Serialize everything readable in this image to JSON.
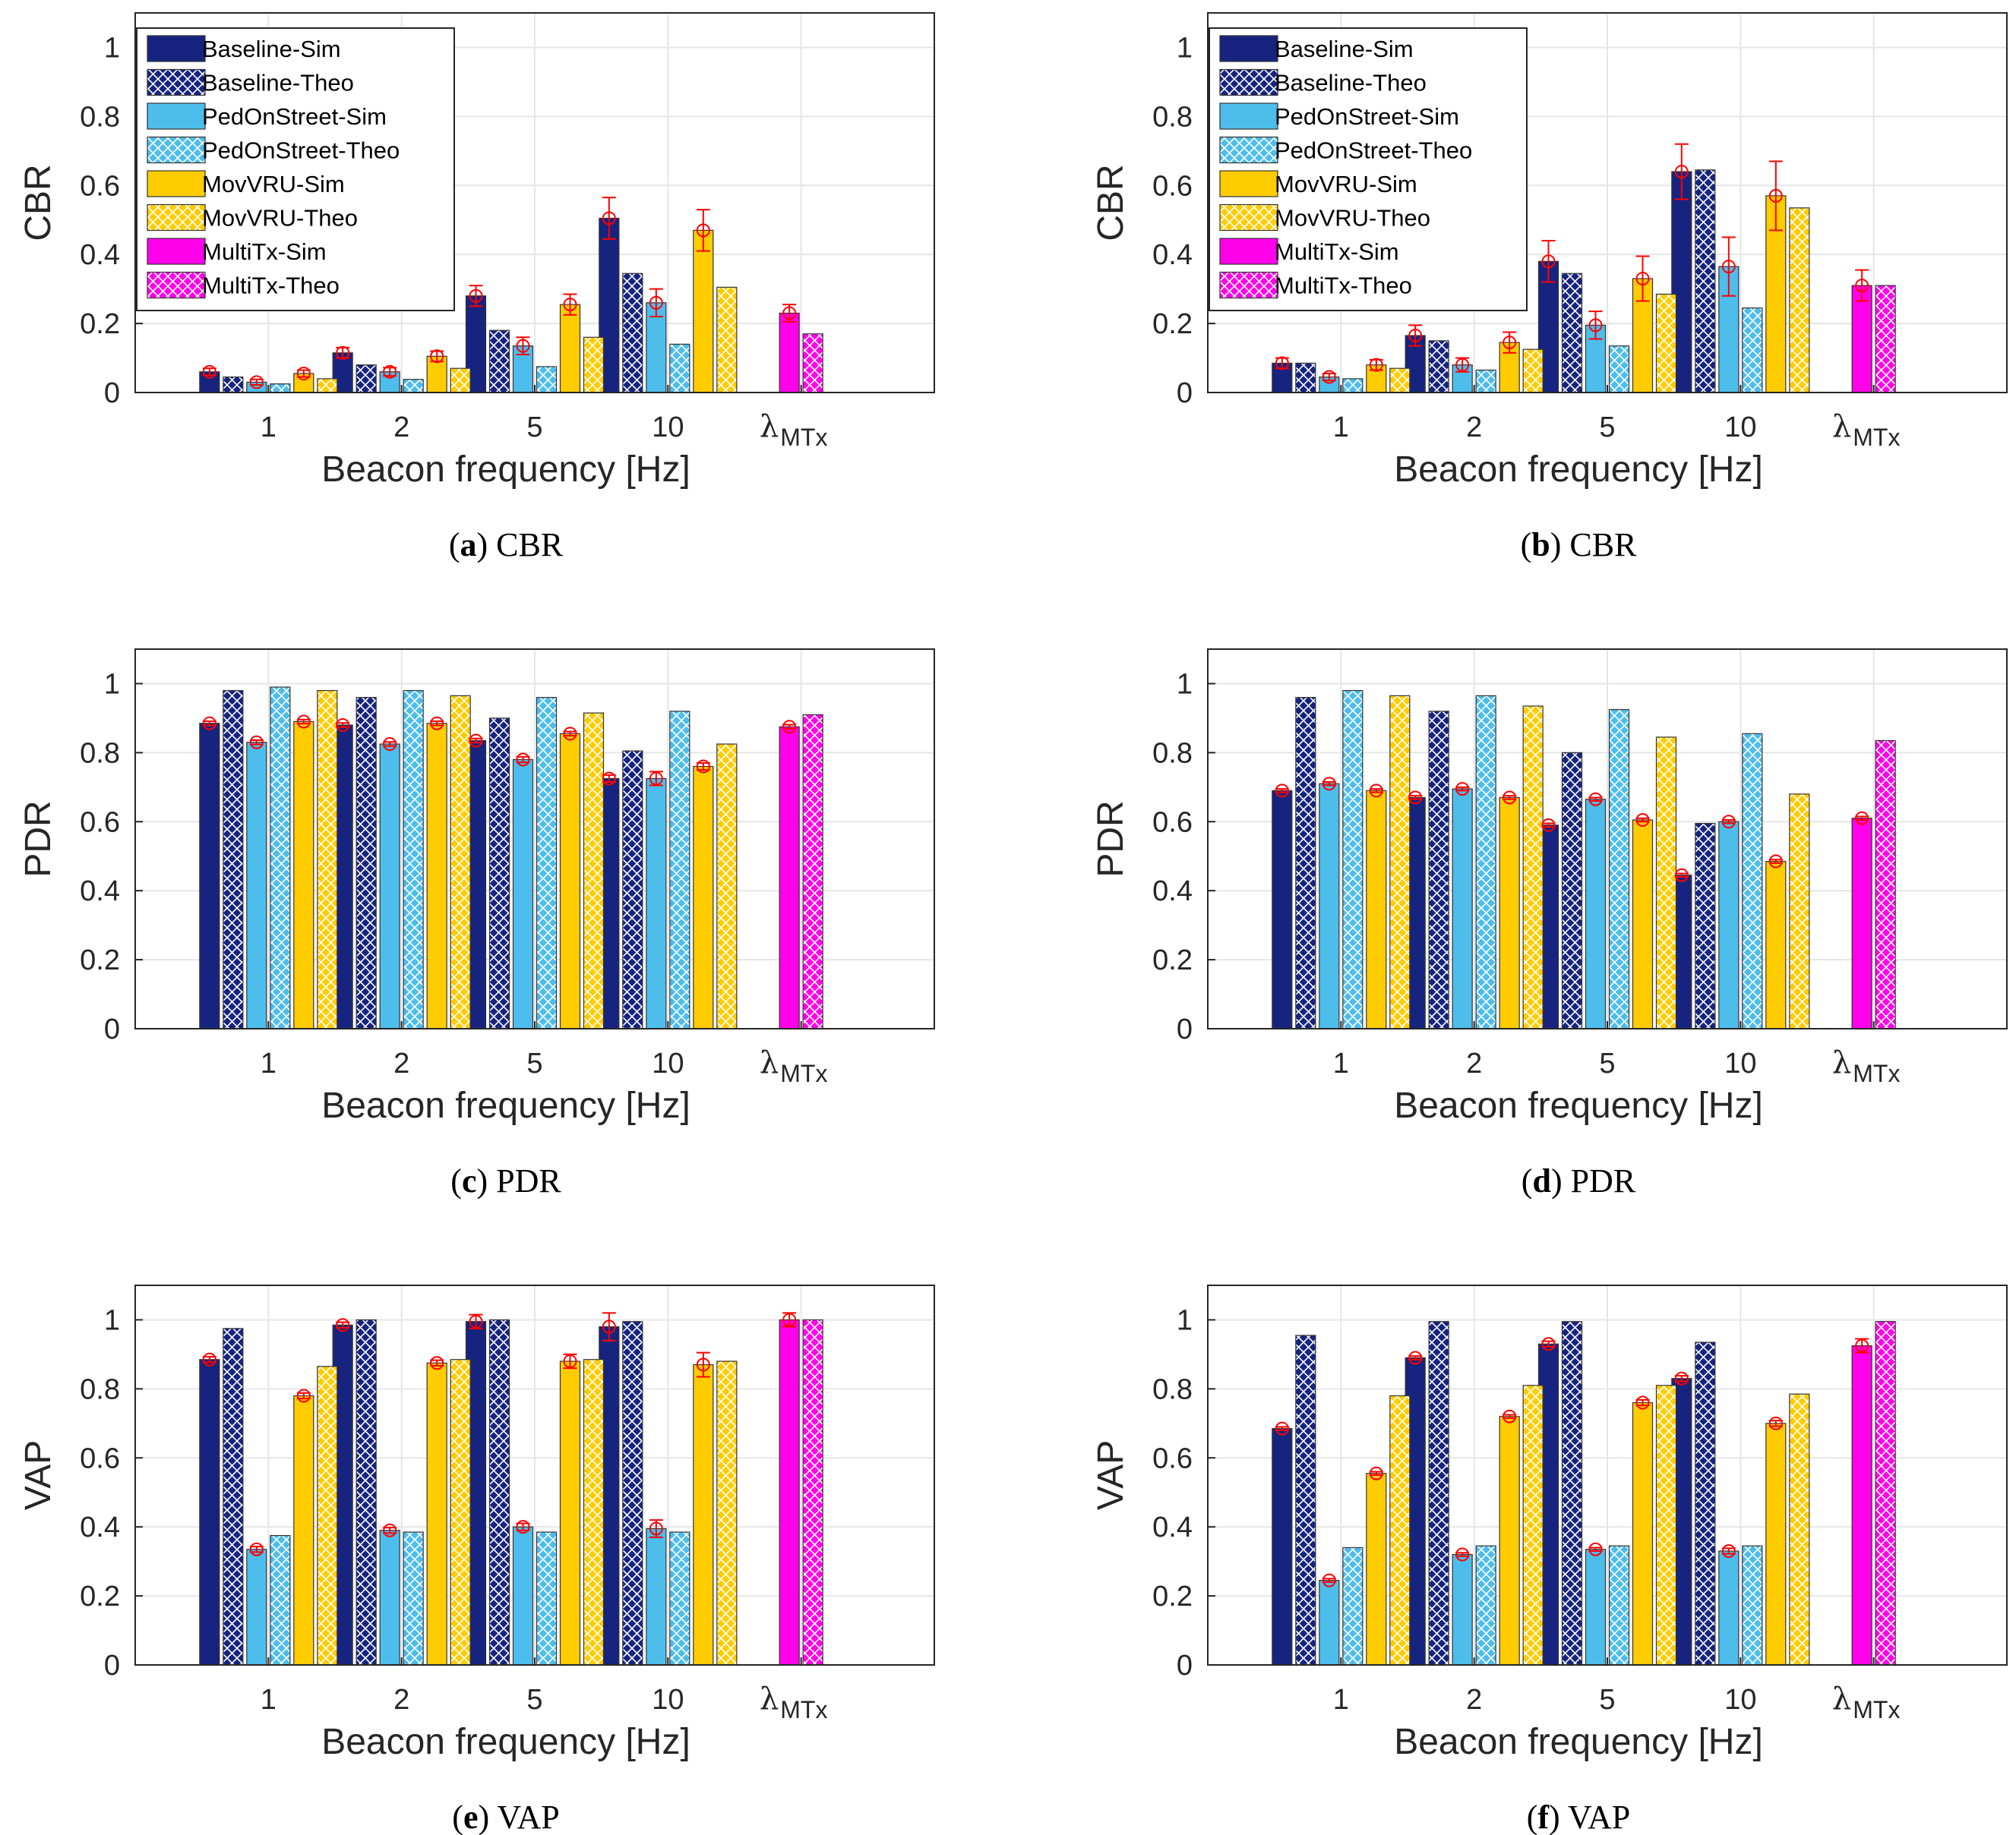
{
  "colors": {
    "Baseline": "#16247F",
    "PedOnStreet": "#4DBDEC",
    "MovVRU": "#FFCC00",
    "MultiTx": "#FF00EA",
    "error": "#FF0000",
    "grid": "#E6E6E6"
  },
  "chart_data": [
    {
      "id": "a",
      "type": "bar",
      "caption": {
        "letter": "a",
        "text": "CBR"
      },
      "ylabel": "CBR",
      "xlabel": "Beacon frequency [Hz]",
      "ylim": [
        0,
        1.1
      ],
      "yticks": [
        "0",
        "0.2",
        "0.4",
        "0.6",
        "0.8",
        "1"
      ],
      "categories": [
        "1",
        "2",
        "5",
        "10",
        "λMTx"
      ],
      "lambda_label": {
        "symbol": "λ",
        "sub": "MTx"
      },
      "legend": [
        "Baseline-Sim",
        "Baseline-Theo",
        "PedOnStreet-Sim",
        "PedOnStreet-Theo",
        "MovVRU-Sim",
        "MovVRU-Theo",
        "MultiTx-Sim",
        "MultiTx-Theo"
      ],
      "series": [
        {
          "name": "Baseline-Sim",
          "values": [
            0.06,
            0.115,
            0.28,
            0.505,
            null
          ],
          "err": [
            0.01,
            0.015,
            0.03,
            0.06,
            null
          ]
        },
        {
          "name": "Baseline-Theo",
          "values": [
            0.045,
            0.08,
            0.18,
            0.345,
            null
          ]
        },
        {
          "name": "PedOnStreet-Sim",
          "values": [
            0.03,
            0.06,
            0.135,
            0.26,
            null
          ],
          "err": [
            0.008,
            0.012,
            0.025,
            0.04,
            null
          ]
        },
        {
          "name": "PedOnStreet-Theo",
          "values": [
            0.025,
            0.038,
            0.075,
            0.14,
            null
          ]
        },
        {
          "name": "MovVRU-Sim",
          "values": [
            0.055,
            0.105,
            0.255,
            0.47,
            null
          ],
          "err": [
            0.01,
            0.015,
            0.03,
            0.06,
            null
          ]
        },
        {
          "name": "MovVRU-Theo",
          "values": [
            0.04,
            0.07,
            0.16,
            0.305,
            null
          ]
        },
        {
          "name": "MultiTx-Sim",
          "values": [
            null,
            null,
            null,
            null,
            0.23
          ],
          "err": [
            null,
            null,
            null,
            null,
            0.025
          ]
        },
        {
          "name": "MultiTx-Theo",
          "values": [
            null,
            null,
            null,
            null,
            0.17
          ]
        }
      ]
    },
    {
      "id": "b",
      "type": "bar",
      "caption": {
        "letter": "b",
        "text": "CBR"
      },
      "ylabel": "CBR",
      "xlabel": "Beacon frequency [Hz]",
      "ylim": [
        0,
        1.1
      ],
      "yticks": [
        "0",
        "0.2",
        "0.4",
        "0.6",
        "0.8",
        "1"
      ],
      "categories": [
        "1",
        "2",
        "5",
        "10",
        "λMTx"
      ],
      "lambda_label": {
        "symbol": "λ",
        "sub": "MTx"
      },
      "legend": [
        "Baseline-Sim",
        "Baseline-Theo",
        "PedOnStreet-Sim",
        "PedOnStreet-Theo",
        "MovVRU-Sim",
        "MovVRU-Theo",
        "MultiTx-Sim",
        "MultiTx-Theo"
      ],
      "series": [
        {
          "name": "Baseline-Sim",
          "values": [
            0.085,
            0.165,
            0.38,
            0.64,
            null
          ],
          "err": [
            0.015,
            0.03,
            0.06,
            0.08,
            null
          ]
        },
        {
          "name": "Baseline-Theo",
          "values": [
            0.085,
            0.15,
            0.345,
            0.645,
            null
          ]
        },
        {
          "name": "PedOnStreet-Sim",
          "values": [
            0.045,
            0.08,
            0.195,
            0.365,
            null
          ],
          "err": [
            0.01,
            0.02,
            0.04,
            0.085,
            null
          ]
        },
        {
          "name": "PedOnStreet-Theo",
          "values": [
            0.04,
            0.065,
            0.135,
            0.245,
            null
          ]
        },
        {
          "name": "MovVRU-Sim",
          "values": [
            0.08,
            0.145,
            0.33,
            0.57,
            null
          ],
          "err": [
            0.015,
            0.03,
            0.065,
            0.1,
            null
          ]
        },
        {
          "name": "MovVRU-Theo",
          "values": [
            0.07,
            0.125,
            0.285,
            0.535,
            null
          ]
        },
        {
          "name": "MultiTx-Sim",
          "values": [
            null,
            null,
            null,
            null,
            0.31
          ],
          "err": [
            null,
            null,
            null,
            null,
            0.045
          ]
        },
        {
          "name": "MultiTx-Theo",
          "values": [
            null,
            null,
            null,
            null,
            0.31
          ]
        }
      ]
    },
    {
      "id": "c",
      "type": "bar",
      "caption": {
        "letter": "c",
        "text": "PDR"
      },
      "ylabel": "PDR",
      "xlabel": "Beacon frequency [Hz]",
      "ylim": [
        0,
        1.1
      ],
      "yticks": [
        "0",
        "0.2",
        "0.4",
        "0.6",
        "0.8",
        "1"
      ],
      "categories": [
        "1",
        "2",
        "5",
        "10",
        "λMTx"
      ],
      "lambda_label": {
        "symbol": "λ",
        "sub": "MTx"
      },
      "series": [
        {
          "name": "Baseline-Sim",
          "values": [
            0.885,
            0.88,
            0.835,
            0.725,
            null
          ],
          "err": [
            0.006,
            0.006,
            0.006,
            0.01,
            null
          ]
        },
        {
          "name": "Baseline-Theo",
          "values": [
            0.98,
            0.96,
            0.9,
            0.805,
            null
          ]
        },
        {
          "name": "PedOnStreet-Sim",
          "values": [
            0.83,
            0.825,
            0.78,
            0.725,
            null
          ],
          "err": [
            0.006,
            0.006,
            0.008,
            0.02,
            null
          ]
        },
        {
          "name": "PedOnStreet-Theo",
          "values": [
            0.99,
            0.98,
            0.96,
            0.92,
            null
          ]
        },
        {
          "name": "MovVRU-Sim",
          "values": [
            0.89,
            0.885,
            0.855,
            0.76,
            null
          ],
          "err": [
            0.006,
            0.006,
            0.006,
            0.01,
            null
          ]
        },
        {
          "name": "MovVRU-Theo",
          "values": [
            0.98,
            0.965,
            0.915,
            0.825,
            null
          ]
        },
        {
          "name": "MultiTx-Sim",
          "values": [
            null,
            null,
            null,
            null,
            0.875
          ],
          "err": [
            null,
            null,
            null,
            null,
            0.006
          ]
        },
        {
          "name": "MultiTx-Theo",
          "values": [
            null,
            null,
            null,
            null,
            0.91
          ]
        }
      ]
    },
    {
      "id": "d",
      "type": "bar",
      "caption": {
        "letter": "d",
        "text": "PDR"
      },
      "ylabel": "PDR",
      "xlabel": "Beacon frequency [Hz]",
      "ylim": [
        0,
        1.1
      ],
      "yticks": [
        "0",
        "0.2",
        "0.4",
        "0.6",
        "0.8",
        "1"
      ],
      "categories": [
        "1",
        "2",
        "5",
        "10",
        "λMTx"
      ],
      "lambda_label": {
        "symbol": "λ",
        "sub": "MTx"
      },
      "series": [
        {
          "name": "Baseline-Sim",
          "values": [
            0.69,
            0.67,
            0.59,
            0.445,
            null
          ],
          "err": [
            0.005,
            0.005,
            0.005,
            0.005,
            null
          ]
        },
        {
          "name": "Baseline-Theo",
          "values": [
            0.96,
            0.92,
            0.8,
            0.595,
            null
          ]
        },
        {
          "name": "PedOnStreet-Sim",
          "values": [
            0.71,
            0.695,
            0.665,
            0.6,
            null
          ],
          "err": [
            0.005,
            0.005,
            0.005,
            0.005,
            null
          ]
        },
        {
          "name": "PedOnStreet-Theo",
          "values": [
            0.98,
            0.965,
            0.925,
            0.855,
            null
          ]
        },
        {
          "name": "MovVRU-Sim",
          "values": [
            0.69,
            0.67,
            0.605,
            0.485,
            null
          ],
          "err": [
            0.005,
            0.005,
            0.005,
            0.005,
            null
          ]
        },
        {
          "name": "MovVRU-Theo",
          "values": [
            0.965,
            0.935,
            0.845,
            0.68,
            null
          ]
        },
        {
          "name": "MultiTx-Sim",
          "values": [
            null,
            null,
            null,
            null,
            0.61
          ],
          "err": [
            null,
            null,
            null,
            null,
            0.005
          ]
        },
        {
          "name": "MultiTx-Theo",
          "values": [
            null,
            null,
            null,
            null,
            0.835
          ]
        }
      ]
    },
    {
      "id": "e",
      "type": "bar",
      "caption": {
        "letter": "e",
        "text": "VAP"
      },
      "ylabel": "VAP",
      "xlabel": "Beacon frequency [Hz]",
      "ylim": [
        0,
        1.1
      ],
      "yticks": [
        "0",
        "0.2",
        "0.4",
        "0.6",
        "0.8",
        "1"
      ],
      "categories": [
        "1",
        "2",
        "5",
        "10",
        "λMTx"
      ],
      "lambda_label": {
        "symbol": "λ",
        "sub": "MTx"
      },
      "series": [
        {
          "name": "Baseline-Sim",
          "values": [
            0.885,
            0.985,
            0.995,
            0.98,
            null
          ],
          "err": [
            0.008,
            0.008,
            0.02,
            0.04,
            null
          ]
        },
        {
          "name": "Baseline-Theo",
          "values": [
            0.975,
            1.0,
            1.0,
            0.995,
            null
          ]
        },
        {
          "name": "PedOnStreet-Sim",
          "values": [
            0.335,
            0.39,
            0.4,
            0.395,
            null
          ],
          "err": [
            0.008,
            0.008,
            0.01,
            0.025,
            null
          ]
        },
        {
          "name": "PedOnStreet-Theo",
          "values": [
            0.375,
            0.385,
            0.385,
            0.385,
            null
          ]
        },
        {
          "name": "MovVRU-Sim",
          "values": [
            0.78,
            0.875,
            0.88,
            0.87,
            null
          ],
          "err": [
            0.008,
            0.008,
            0.02,
            0.035,
            null
          ]
        },
        {
          "name": "MovVRU-Theo",
          "values": [
            0.865,
            0.885,
            0.885,
            0.88,
            null
          ]
        },
        {
          "name": "MultiTx-Sim",
          "values": [
            null,
            null,
            null,
            null,
            1.0
          ],
          "err": [
            null,
            null,
            null,
            null,
            0.02
          ]
        },
        {
          "name": "MultiTx-Theo",
          "values": [
            null,
            null,
            null,
            null,
            1.0
          ]
        }
      ]
    },
    {
      "id": "f",
      "type": "bar",
      "caption": {
        "letter": "f",
        "text": "VAP"
      },
      "ylabel": "VAP",
      "xlabel": "Beacon frequency [Hz]",
      "ylim": [
        0,
        1.1
      ],
      "yticks": [
        "0",
        "0.2",
        "0.4",
        "0.6",
        "0.8",
        "1"
      ],
      "categories": [
        "1",
        "2",
        "5",
        "10",
        "λMTx"
      ],
      "lambda_label": {
        "symbol": "λ",
        "sub": "MTx"
      },
      "series": [
        {
          "name": "Baseline-Sim",
          "values": [
            0.685,
            0.89,
            0.93,
            0.83,
            null
          ],
          "err": [
            0.005,
            0.005,
            0.008,
            0.008,
            null
          ]
        },
        {
          "name": "Baseline-Theo",
          "values": [
            0.955,
            0.995,
            0.995,
            0.935,
            null
          ]
        },
        {
          "name": "PedOnStreet-Sim",
          "values": [
            0.245,
            0.32,
            0.335,
            0.33,
            null
          ],
          "err": [
            0.005,
            0.005,
            0.005,
            0.008,
            null
          ]
        },
        {
          "name": "PedOnStreet-Theo",
          "values": [
            0.34,
            0.345,
            0.345,
            0.345,
            null
          ]
        },
        {
          "name": "MovVRU-Sim",
          "values": [
            0.555,
            0.72,
            0.76,
            0.7,
            null
          ],
          "err": [
            0.005,
            0.005,
            0.008,
            0.008,
            null
          ]
        },
        {
          "name": "MovVRU-Theo",
          "values": [
            0.78,
            0.81,
            0.81,
            0.785,
            null
          ]
        },
        {
          "name": "MultiTx-Sim",
          "values": [
            null,
            null,
            null,
            null,
            0.925
          ],
          "err": [
            null,
            null,
            null,
            null,
            0.02
          ]
        },
        {
          "name": "MultiTx-Theo",
          "values": [
            null,
            null,
            null,
            null,
            0.995
          ]
        }
      ]
    }
  ]
}
